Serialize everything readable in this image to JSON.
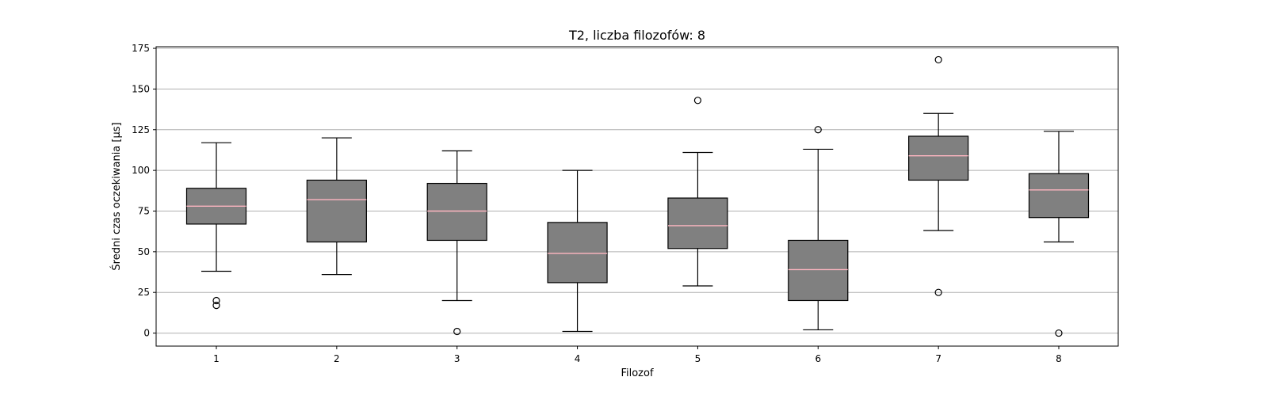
{
  "chart_data": {
    "type": "box",
    "title": "T2, liczba filozofów: 8",
    "xlabel": "Filozof",
    "ylabel": "Średni czas oczekiwania [µs]",
    "categories": [
      "1",
      "2",
      "3",
      "4",
      "5",
      "6",
      "7",
      "8"
    ],
    "yticks": [
      0,
      25,
      50,
      75,
      100,
      125,
      150,
      175
    ],
    "ylim": [
      -8,
      176
    ],
    "grid": "horizontal",
    "box_color": "#808080",
    "median_color": "#ffb6c1",
    "boxes": [
      {
        "label": "1",
        "whisker_low": 38,
        "q1": 67,
        "median": 78,
        "q3": 89,
        "whisker_high": 117,
        "outliers": [
          20,
          17
        ]
      },
      {
        "label": "2",
        "whisker_low": 36,
        "q1": 56,
        "median": 82,
        "q3": 94,
        "whisker_high": 120,
        "outliers": []
      },
      {
        "label": "3",
        "whisker_low": 20,
        "q1": 57,
        "median": 75,
        "q3": 92,
        "whisker_high": 112,
        "outliers": [
          1
        ]
      },
      {
        "label": "4",
        "whisker_low": 1,
        "q1": 31,
        "median": 49,
        "q3": 68,
        "whisker_high": 100,
        "outliers": []
      },
      {
        "label": "5",
        "whisker_low": 29,
        "q1": 52,
        "median": 66,
        "q3": 83,
        "whisker_high": 111,
        "outliers": [
          143
        ]
      },
      {
        "label": "6",
        "whisker_low": 2,
        "q1": 20,
        "median": 39,
        "q3": 57,
        "whisker_high": 113,
        "outliers": [
          125
        ]
      },
      {
        "label": "7",
        "whisker_low": 63,
        "q1": 94,
        "median": 109,
        "q3": 121,
        "whisker_high": 135,
        "outliers": [
          168,
          25
        ]
      },
      {
        "label": "8",
        "whisker_low": 56,
        "q1": 71,
        "median": 88,
        "q3": 98,
        "whisker_high": 124,
        "outliers": [
          0
        ]
      }
    ]
  }
}
